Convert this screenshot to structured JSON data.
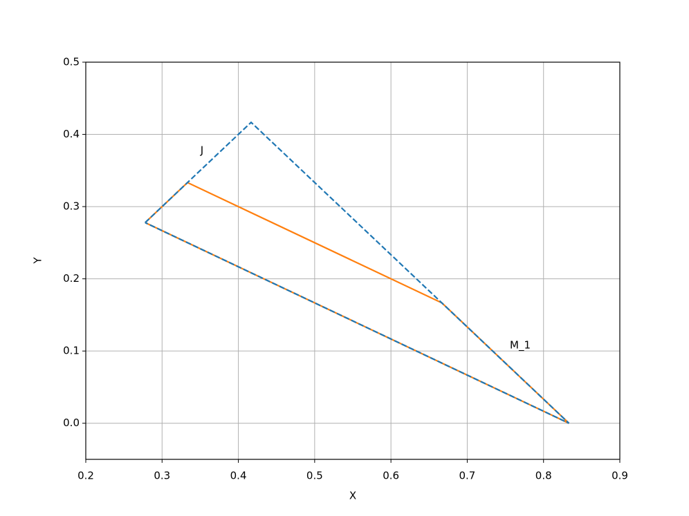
{
  "chart_data": {
    "type": "line",
    "xlabel": "X",
    "ylabel": "Y",
    "xlim": [
      0.2,
      0.9
    ],
    "ylim": [
      -0.05,
      0.5
    ],
    "xticks": [
      0.2,
      0.3,
      0.4,
      0.5,
      0.6,
      0.7,
      0.8,
      0.9
    ],
    "yticks": [
      {
        "value": 0,
        "label": "0.0"
      },
      0.1,
      0.2,
      0.3,
      0.4,
      0.5
    ],
    "grid": true,
    "series": [
      {
        "color": "#ff7f0e",
        "linestyle": "solid",
        "x": [
          0.2778,
          0.3333,
          0.6667,
          0.8333,
          0.2778
        ],
        "values": [
          0.2778,
          0.3333,
          0.1667,
          0,
          0.2778
        ]
      },
      {
        "color": "#1f77b4",
        "linestyle": "dashed",
        "x": [
          0.2778,
          0.4167,
          0.8333,
          0.2778
        ],
        "values": [
          0.2778,
          0.4167,
          0,
          0.2778
        ]
      }
    ],
    "annotations": [
      "J",
      "M_1"
    ]
  }
}
